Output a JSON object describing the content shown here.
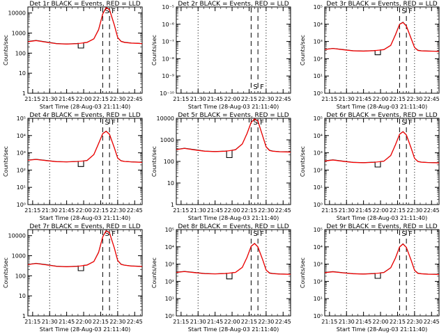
{
  "figure": {
    "ylabel": "Counts/sec",
    "xlabel": "Start Time (28-Aug-03 21:11:40)",
    "xticks": [
      "21:15",
      "21:30",
      "21:45",
      "22:00",
      "22:15",
      "22:30",
      "22:45"
    ],
    "marker_labels": [
      "S",
      "F"
    ],
    "colors": {
      "events": "#000000",
      "lld": "#ff0000",
      "axes": "#000000"
    }
  },
  "chart_data": [
    {
      "type": "line",
      "title": "Det 1r BLACK = Events, RED = LLD",
      "scale": "log",
      "ylim": [
        1,
        20000
      ],
      "yticks": [
        "1",
        "10",
        "100",
        "1000",
        "10000"
      ],
      "xlim": [
        21.18,
        22.86
      ],
      "x": [
        21.18,
        21.3,
        21.45,
        21.6,
        21.75,
        21.9,
        22.05,
        22.15,
        22.22,
        22.28,
        22.33,
        22.38,
        22.45,
        22.5,
        22.55,
        22.6,
        22.7,
        22.8,
        22.86
      ],
      "series": [
        {
          "values": [
            380,
            430,
            360,
            300,
            285,
            300,
            345,
            520,
            1500,
            9000,
            19000,
            15000,
            2600,
            600,
            390,
            350,
            320,
            310,
            300
          ]
        },
        {
          "values": [
            370,
            420,
            350,
            295,
            280,
            295,
            340,
            510,
            1450,
            8800,
            18500,
            14500,
            2500,
            590,
            380,
            340,
            315,
            305,
            295
          ]
        }
      ],
      "dip": {
        "x0": 21.92,
        "x1": 22.0,
        "value": 180
      },
      "flags": {
        "dotted": [
          21.5,
          22.5
        ],
        "dashed": [
          22.28,
          22.38
        ]
      },
      "events_visible": true
    },
    {
      "type": "line",
      "title": "Det 2r BLACK = Events, RED = LLD",
      "scale": "log",
      "ylim": [
        1e-10,
        1e-05
      ],
      "yticks": [
        "10⁻¹⁰",
        "10⁻⁹",
        "10⁻⁸",
        "10⁻⁷",
        "10⁻⁶",
        "10⁻⁵"
      ],
      "xlim": [
        21.18,
        22.86
      ],
      "x": [],
      "series": [],
      "dip": null,
      "flags": {
        "dotted": [
          21.5,
          22.5
        ],
        "dashed": [
          22.28,
          22.38
        ]
      },
      "events_visible": false
    },
    {
      "type": "line",
      "title": "Det 3r BLACK = Events, RED = LLD",
      "scale": "log",
      "ylim": [
        1,
        100000
      ],
      "yticks": [
        "10⁰",
        "10¹",
        "10²",
        "10³",
        "10⁴",
        "10⁵"
      ],
      "xlim": [
        21.18,
        22.86
      ],
      "x": [
        21.18,
        21.3,
        21.45,
        21.6,
        21.75,
        21.9,
        22.05,
        22.15,
        22.22,
        22.28,
        22.33,
        22.38,
        22.45,
        22.5,
        22.55,
        22.6,
        22.7,
        22.8,
        22.86
      ],
      "series": [
        {
          "values": [
            350,
            400,
            340,
            290,
            280,
            295,
            340,
            600,
            2500,
            10000,
            13000,
            8000,
            1500,
            450,
            310,
            290,
            280,
            275,
            270
          ]
        },
        {
          "values": [
            340,
            390,
            330,
            285,
            275,
            290,
            335,
            590,
            2400,
            9800,
            12500,
            7800,
            1450,
            440,
            300,
            285,
            275,
            270,
            265
          ]
        }
      ],
      "dip": {
        "x0": 21.92,
        "x1": 22.0,
        "value": 170
      },
      "flags": {
        "dotted": [
          21.5,
          22.5
        ],
        "dashed": [
          22.28,
          22.38
        ]
      },
      "events_visible": true
    },
    {
      "type": "line",
      "title": "Det 4r BLACK = Events, RED = LLD",
      "scale": "log",
      "ylim": [
        1,
        100000
      ],
      "yticks": [
        "10⁰",
        "10¹",
        "10²",
        "10³",
        "10⁴",
        "10⁵"
      ],
      "xlim": [
        21.18,
        22.86
      ],
      "x": [
        21.18,
        21.3,
        21.45,
        21.6,
        21.75,
        21.9,
        22.05,
        22.15,
        22.22,
        22.28,
        22.33,
        22.38,
        22.45,
        22.5,
        22.55,
        22.6,
        22.7,
        22.8,
        22.86
      ],
      "series": [
        {
          "values": [
            380,
            420,
            360,
            310,
            300,
            315,
            360,
            800,
            3500,
            13000,
            18000,
            12000,
            2000,
            500,
            350,
            320,
            300,
            290,
            285
          ]
        },
        {
          "values": [
            370,
            410,
            350,
            305,
            295,
            310,
            355,
            790,
            3400,
            12800,
            17500,
            11800,
            1950,
            490,
            340,
            315,
            295,
            285,
            280
          ]
        }
      ],
      "dip": {
        "x0": 21.92,
        "x1": 22.0,
        "value": 160
      },
      "flags": {
        "dotted": [
          21.5,
          22.5
        ],
        "dashed": [
          22.28,
          22.38
        ]
      },
      "events_visible": true
    },
    {
      "type": "line",
      "title": "Det 5r BLACK = Events, RED = LLD",
      "scale": "log",
      "ylim": [
        1,
        10000
      ],
      "yticks": [
        "1",
        "10",
        "100",
        "1000",
        "10000"
      ],
      "xlim": [
        21.18,
        22.86
      ],
      "x": [
        21.18,
        21.3,
        21.45,
        21.6,
        21.75,
        21.9,
        22.05,
        22.15,
        22.22,
        22.28,
        22.33,
        22.38,
        22.45,
        22.5,
        22.55,
        22.6,
        22.7,
        22.8,
        22.86
      ],
      "series": [
        {
          "values": [
            360,
            410,
            350,
            300,
            290,
            300,
            350,
            650,
            2000,
            6500,
            9500,
            7500,
            1500,
            480,
            330,
            300,
            285,
            280,
            275
          ]
        },
        {
          "values": [
            350,
            400,
            340,
            295,
            285,
            295,
            345,
            640,
            1950,
            6400,
            9300,
            7300,
            1450,
            470,
            320,
            295,
            280,
            275,
            270
          ]
        }
      ],
      "dip": {
        "x0": 21.92,
        "x1": 22.0,
        "value": 150
      },
      "flags": {
        "dotted": [
          21.5,
          22.5
        ],
        "dashed": [
          22.28,
          22.38
        ]
      },
      "events_visible": true
    },
    {
      "type": "line",
      "title": "Det 6r BLACK = Events, RED = LLD",
      "scale": "log",
      "ylim": [
        1,
        100000
      ],
      "yticks": [
        "10⁰",
        "10¹",
        "10²",
        "10³",
        "10⁴",
        "10⁵"
      ],
      "xlim": [
        21.18,
        22.86
      ],
      "x": [
        21.18,
        21.3,
        21.45,
        21.6,
        21.75,
        21.9,
        22.05,
        22.15,
        22.22,
        22.28,
        22.33,
        22.38,
        22.45,
        22.5,
        22.55,
        22.6,
        22.7,
        22.8,
        22.86
      ],
      "series": [
        {
          "values": [
            340,
            390,
            330,
            280,
            270,
            285,
            330,
            700,
            3000,
            12000,
            17000,
            11000,
            1900,
            480,
            320,
            290,
            275,
            270,
            265
          ]
        },
        {
          "values": [
            330,
            380,
            320,
            275,
            265,
            280,
            325,
            690,
            2900,
            11800,
            16500,
            10800,
            1850,
            470,
            310,
            285,
            270,
            265,
            260
          ]
        }
      ],
      "dip": {
        "x0": 21.92,
        "x1": 22.0,
        "value": 150
      },
      "flags": {
        "dotted": [
          21.5,
          22.5
        ],
        "dashed": [
          22.28,
          22.38
        ]
      },
      "events_visible": true
    },
    {
      "type": "line",
      "title": "Det 7r BLACK = Events, RED = LLD",
      "scale": "log",
      "ylim": [
        1,
        20000
      ],
      "yticks": [
        "1",
        "10",
        "100",
        "1000",
        "10000"
      ],
      "xlim": [
        21.18,
        22.86
      ],
      "x": [
        21.18,
        21.3,
        21.45,
        21.6,
        21.75,
        21.9,
        22.05,
        22.15,
        22.22,
        22.28,
        22.33,
        22.38,
        22.45,
        22.5,
        22.55,
        22.6,
        22.7,
        22.8,
        22.86
      ],
      "series": [
        {
          "values": [
            370,
            420,
            360,
            300,
            285,
            300,
            345,
            520,
            1500,
            8800,
            18000,
            14000,
            2500,
            580,
            380,
            340,
            310,
            300,
            295
          ]
        },
        {
          "values": [
            360,
            410,
            350,
            295,
            280,
            295,
            340,
            510,
            1450,
            8600,
            17500,
            13800,
            2450,
            570,
            370,
            335,
            305,
            295,
            290
          ]
        }
      ],
      "dip": {
        "x0": 21.92,
        "x1": 22.0,
        "value": 180
      },
      "flags": {
        "dotted": [
          21.5,
          22.5
        ],
        "dashed": [
          22.28,
          22.38
        ]
      },
      "events_visible": true
    },
    {
      "type": "line",
      "title": "Det 8r BLACK = Events, RED = LLD",
      "scale": "log",
      "ylim": [
        1,
        100000
      ],
      "yticks": [
        "10⁰",
        "10¹",
        "10²",
        "10³",
        "10⁴",
        "10⁵"
      ],
      "xlim": [
        21.18,
        22.86
      ],
      "x": [
        21.18,
        21.3,
        21.45,
        21.6,
        21.75,
        21.9,
        22.05,
        22.15,
        22.22,
        22.28,
        22.33,
        22.38,
        22.45,
        22.5,
        22.55,
        22.6,
        22.7,
        22.8,
        22.86
      ],
      "series": [
        {
          "values": [
            340,
            380,
            330,
            285,
            275,
            290,
            335,
            650,
            2500,
            11000,
            16000,
            10000,
            1800,
            460,
            310,
            285,
            270,
            265,
            260
          ]
        },
        {
          "values": [
            330,
            370,
            320,
            280,
            270,
            285,
            330,
            640,
            2450,
            10800,
            15500,
            9800,
            1750,
            450,
            300,
            280,
            265,
            260,
            255
          ]
        }
      ],
      "dip": {
        "x0": 21.92,
        "x1": 22.0,
        "value": 140
      },
      "flags": {
        "dotted": [
          21.5,
          22.5
        ],
        "dashed": [
          22.28,
          22.38
        ]
      },
      "events_visible": true
    },
    {
      "type": "line",
      "title": "Det 9r BLACK = Events, RED = LLD",
      "scale": "log",
      "ylim": [
        1,
        100000
      ],
      "yticks": [
        "10⁰",
        "10¹",
        "10²",
        "10³",
        "10⁴",
        "10⁵"
      ],
      "xlim": [
        21.18,
        22.86
      ],
      "x": [
        21.18,
        21.3,
        21.45,
        21.6,
        21.75,
        21.9,
        22.05,
        22.15,
        22.22,
        22.28,
        22.33,
        22.38,
        22.45,
        22.5,
        22.55,
        22.6,
        22.7,
        22.8,
        22.86
      ],
      "series": [
        {
          "values": [
            330,
            370,
            320,
            280,
            270,
            285,
            330,
            620,
            2300,
            10000,
            15000,
            9500,
            1700,
            440,
            300,
            280,
            265,
            260,
            255
          ]
        },
        {
          "values": [
            320,
            360,
            310,
            275,
            265,
            280,
            325,
            610,
            2250,
            9800,
            14500,
            9300,
            1650,
            430,
            290,
            275,
            260,
            255,
            250
          ]
        }
      ],
      "dip": {
        "x0": 21.92,
        "x1": 22.0,
        "value": 150
      },
      "flags": {
        "dotted": [
          21.5,
          22.5
        ],
        "dashed": [
          22.28,
          22.38
        ]
      },
      "events_visible": true
    }
  ]
}
